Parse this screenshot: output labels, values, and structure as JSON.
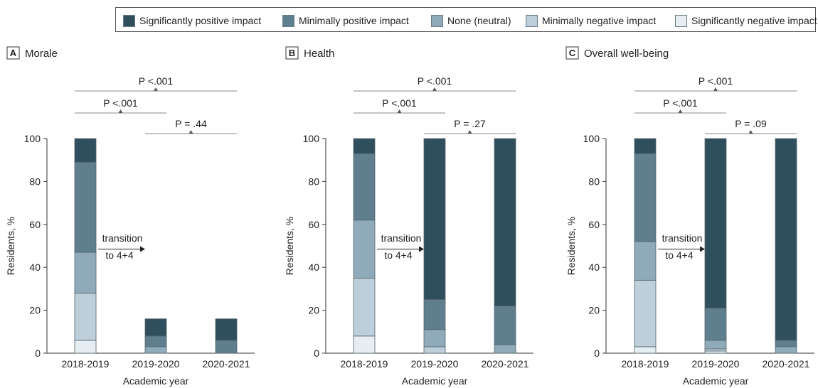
{
  "legend": {
    "items": [
      {
        "label": "Significantly positive impact",
        "color": "#2f4f5c"
      },
      {
        "label": "Minimally positive impact",
        "color": "#5f7f8f"
      },
      {
        "label": "None (neutral)",
        "color": "#8fabba"
      },
      {
        "label": "Minimally negative impact",
        "color": "#bccfda"
      },
      {
        "label": "Significantly negative impact",
        "color": "#e6eef2"
      }
    ]
  },
  "chart_data": [
    {
      "type": "bar",
      "panel_letter": "A",
      "title": "Morale",
      "categories": [
        "2018-2019",
        "2019-2020",
        "2020-2021"
      ],
      "series": [
        {
          "name": "Significantly negative impact",
          "values": [
            6,
            0,
            0
          ]
        },
        {
          "name": "Minimally negative impact",
          "values": [
            22,
            0,
            0
          ]
        },
        {
          "name": "None (neutral)",
          "values": [
            19,
            3,
            0
          ]
        },
        {
          "name": "Minimally positive impact",
          "values": [
            42,
            5,
            6
          ]
        },
        {
          "name": "Significantly positive impact",
          "values": [
            11,
            8,
            10
          ]
        }
      ],
      "series_note": "",
      "remainder_series": "Significantly positive impact",
      "xlabel": "Academic year",
      "ylabel": "Residents, %",
      "ylim": [
        0,
        100
      ],
      "yticks": [
        0,
        20,
        40,
        60,
        80,
        100
      ],
      "comparisons": [
        {
          "label": "P <.001",
          "from": "2018-2019",
          "to": "2020-2021"
        },
        {
          "label": "P <.001",
          "from": "2018-2019",
          "to": "2019-2020"
        },
        {
          "label": "P = .44",
          "from": "2019-2020",
          "to": "2020-2021"
        }
      ],
      "annotation": [
        "transition",
        "to 4+4"
      ]
    },
    {
      "type": "bar",
      "panel_letter": "B",
      "title": "Health",
      "categories": [
        "2018-2019",
        "2019-2020",
        "2020-2021"
      ],
      "series": [
        {
          "name": "Significantly negative impact",
          "values": [
            8,
            0,
            0
          ]
        },
        {
          "name": "Minimally negative impact",
          "values": [
            27,
            3,
            0
          ]
        },
        {
          "name": "None (neutral)",
          "values": [
            27,
            8,
            4
          ]
        },
        {
          "name": "Minimally positive impact",
          "values": [
            31,
            14,
            18
          ]
        },
        {
          "name": "Significantly positive impact",
          "values": [
            7,
            75,
            78
          ]
        }
      ],
      "xlabel": "Academic year",
      "ylabel": "Residents, %",
      "ylim": [
        0,
        100
      ],
      "yticks": [
        0,
        20,
        40,
        60,
        80,
        100
      ],
      "comparisons": [
        {
          "label": "P <.001",
          "from": "2018-2019",
          "to": "2020-2021"
        },
        {
          "label": "P <.001",
          "from": "2018-2019",
          "to": "2019-2020"
        },
        {
          "label": "P = .27",
          "from": "2019-2020",
          "to": "2020-2021"
        }
      ],
      "annotation": [
        "transition",
        "to 4+4"
      ]
    },
    {
      "type": "bar",
      "panel_letter": "C",
      "title": "Overall well-being",
      "categories": [
        "2018-2019",
        "2019-2020",
        "2020-2021"
      ],
      "series": [
        {
          "name": "Significantly negative impact",
          "values": [
            3,
            1,
            0
          ]
        },
        {
          "name": "Minimally negative impact",
          "values": [
            31,
            1,
            0
          ]
        },
        {
          "name": "None (neutral)",
          "values": [
            18,
            4,
            3
          ]
        },
        {
          "name": "Minimally positive impact",
          "values": [
            41,
            15,
            3
          ]
        },
        {
          "name": "Significantly positive impact",
          "values": [
            7,
            79,
            94
          ]
        }
      ],
      "xlabel": "Academic year",
      "ylabel": "Residents, %",
      "ylim": [
        0,
        100
      ],
      "yticks": [
        0,
        20,
        40,
        60,
        80,
        100
      ],
      "comparisons": [
        {
          "label": "P <.001",
          "from": "2018-2019",
          "to": "2020-2021"
        },
        {
          "label": "P <.001",
          "from": "2018-2019",
          "to": "2019-2020"
        },
        {
          "label": "P = .09",
          "from": "2019-2020",
          "to": "2020-2021"
        }
      ],
      "annotation": [
        "transition",
        "to 4+4"
      ]
    }
  ]
}
